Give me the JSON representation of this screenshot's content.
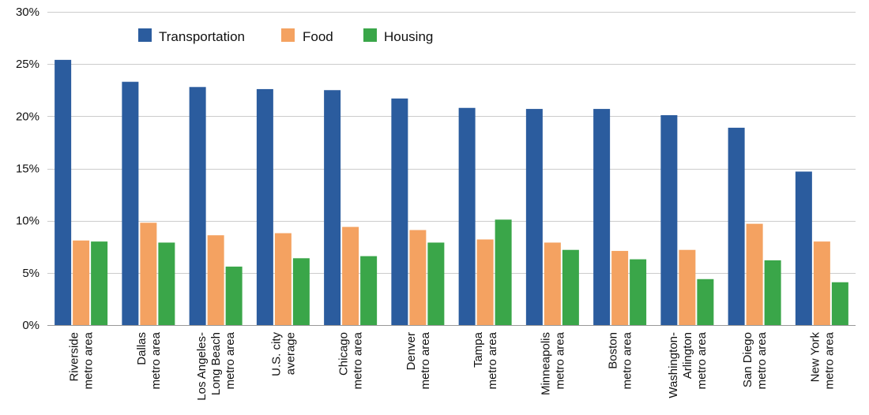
{
  "chart_data": {
    "type": "bar",
    "title": "",
    "xlabel": "",
    "ylabel": "",
    "ylim": [
      0,
      30
    ],
    "yticks": [
      0,
      5,
      10,
      15,
      20,
      25,
      30
    ],
    "ytick_labels": [
      "0%",
      "5%",
      "10%",
      "15%",
      "20%",
      "25%",
      "30%"
    ],
    "grid": true,
    "legend_position": "top-left",
    "categories": [
      [
        "Riverside",
        "metro area"
      ],
      [
        "Dallas",
        "metro area"
      ],
      [
        "Los Angeles-",
        "Long Beach",
        "metro area"
      ],
      [
        "U.S. city",
        "average"
      ],
      [
        "Chicago",
        "metro area"
      ],
      [
        "Denver",
        "metro area"
      ],
      [
        "Tampa",
        "metro area"
      ],
      [
        "Minneapolis",
        "metro area"
      ],
      [
        "Boston",
        "metro area"
      ],
      [
        "Washington-",
        "Arlington",
        "metro area"
      ],
      [
        "San Diego",
        "metro area"
      ],
      [
        "New York",
        "metro area"
      ]
    ],
    "series": [
      {
        "name": "Transportation",
        "color": "#2b5c9e",
        "values": [
          25.4,
          23.3,
          22.8,
          22.6,
          22.5,
          21.7,
          20.8,
          20.7,
          20.7,
          20.1,
          18.9,
          14.7
        ]
      },
      {
        "name": "Food",
        "color": "#f4a261",
        "values": [
          8.1,
          9.8,
          8.6,
          8.8,
          9.4,
          9.1,
          8.2,
          7.9,
          7.1,
          7.2,
          9.7,
          8.0
        ]
      },
      {
        "name": "Housing",
        "color": "#3aa649",
        "values": [
          8.0,
          7.9,
          5.6,
          6.4,
          6.6,
          7.9,
          10.1,
          7.2,
          6.3,
          4.4,
          6.2,
          4.1
        ]
      }
    ]
  }
}
